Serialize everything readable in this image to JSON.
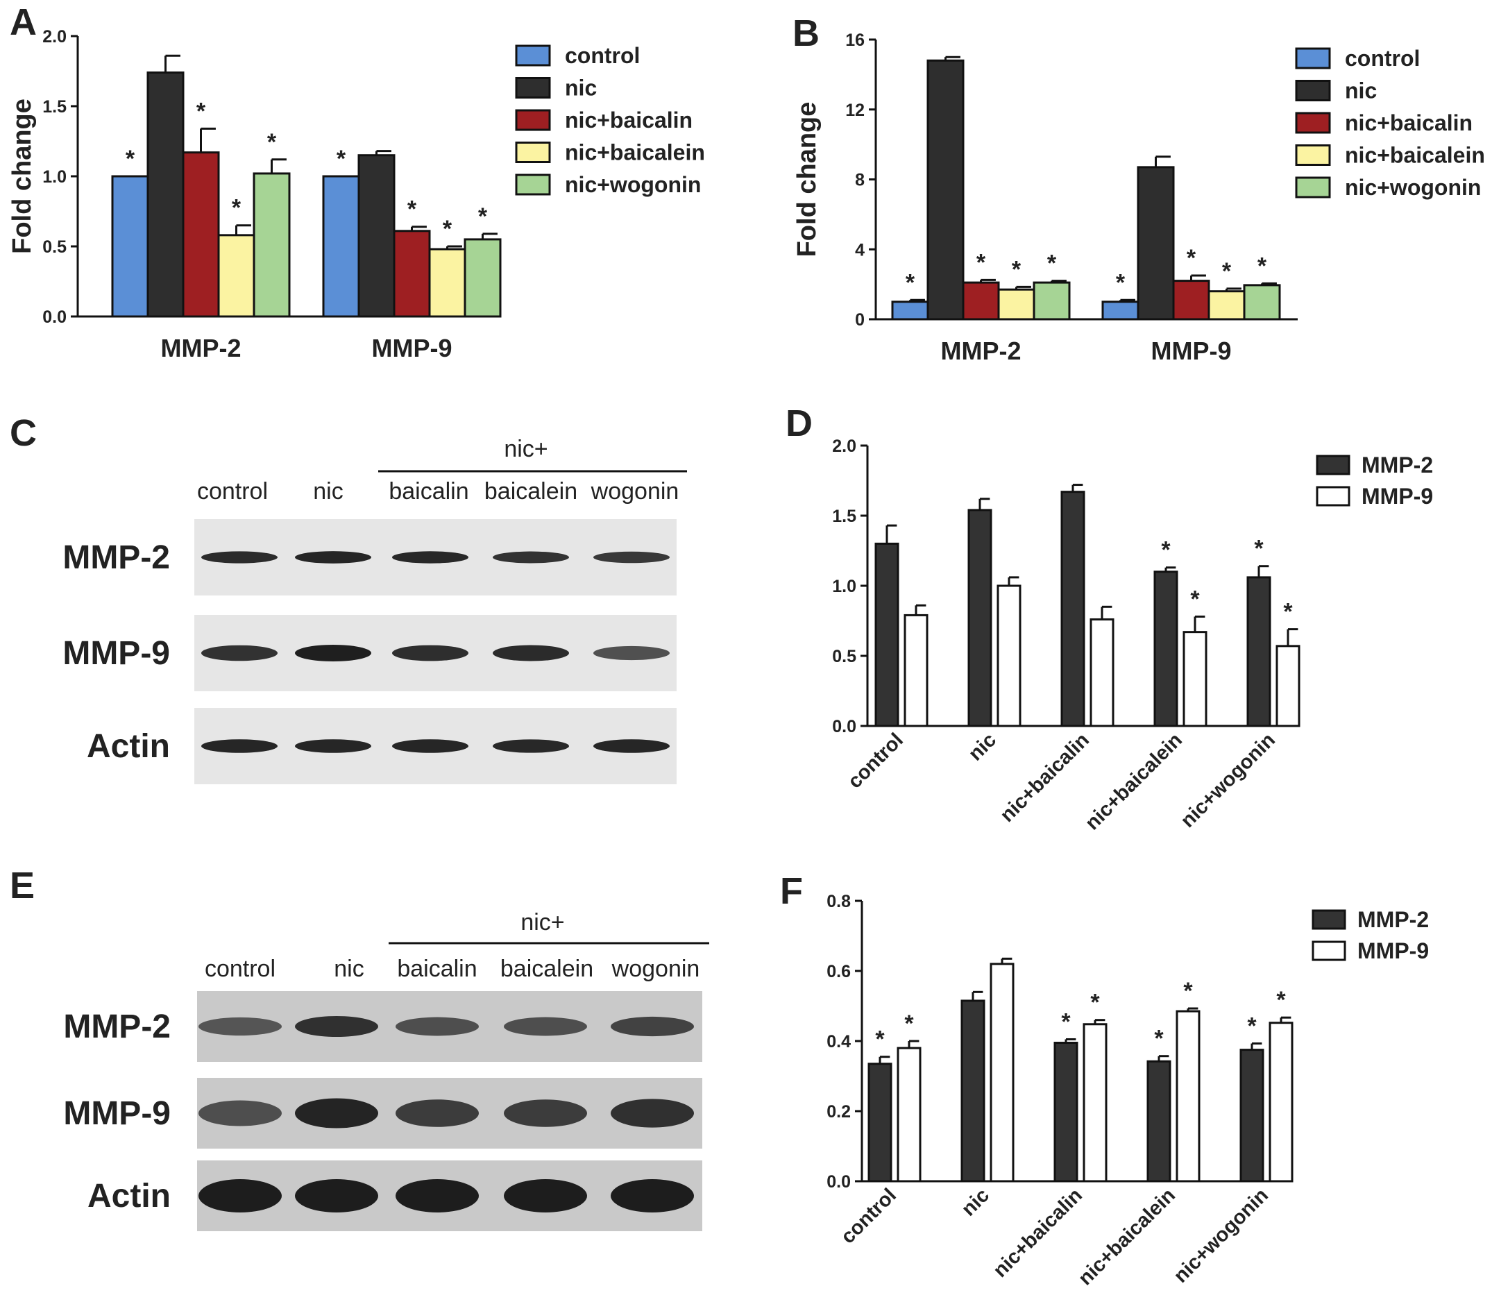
{
  "colors": {
    "control": "#5b8fd6",
    "nic": "#2e2e2e",
    "nic_baicalin": "#9e1f22",
    "nic_baicalein": "#fbf3a2",
    "nic_wogonin": "#a6d495",
    "mmp2_fill": "#333333",
    "mmp9_fill": "#ffffff"
  },
  "chart_data": [
    {
      "panel": "A",
      "type": "bar",
      "ylabel": "Fold change",
      "ylim": [
        0,
        2.0
      ],
      "yticks": [
        "0.0",
        "0.5",
        "1.0",
        "1.5",
        "2.0"
      ],
      "categories": [
        "MMP-2",
        "MMP-9"
      ],
      "legend": "top-right",
      "series": [
        {
          "name": "control",
          "values": [
            1.0,
            1.0
          ],
          "errors": [
            0,
            0
          ],
          "sig": [
            true,
            true
          ]
        },
        {
          "name": "nic",
          "values": [
            1.74,
            1.15
          ],
          "errors": [
            0.12,
            0.03
          ],
          "sig": [
            false,
            false
          ]
        },
        {
          "name": "nic+baicalin",
          "values": [
            1.17,
            0.61
          ],
          "errors": [
            0.17,
            0.03
          ],
          "sig": [
            true,
            true
          ]
        },
        {
          "name": "nic+baicalein",
          "values": [
            0.58,
            0.48
          ],
          "errors": [
            0.07,
            0.02
          ],
          "sig": [
            true,
            true
          ]
        },
        {
          "name": "nic+wogonin",
          "values": [
            1.02,
            0.55
          ],
          "errors": [
            0.1,
            0.04
          ],
          "sig": [
            true,
            true
          ]
        }
      ]
    },
    {
      "panel": "B",
      "type": "bar",
      "ylabel": "Fold change",
      "ylim": [
        0,
        16
      ],
      "yticks": [
        "0",
        "4",
        "8",
        "12",
        "16"
      ],
      "categories": [
        "MMP-2",
        "MMP-9"
      ],
      "legend": "top-right",
      "series": [
        {
          "name": "control",
          "values": [
            1.0,
            1.0
          ],
          "errors": [
            0.1,
            0.1
          ],
          "sig": [
            true,
            true
          ]
        },
        {
          "name": "nic",
          "values": [
            14.8,
            8.7
          ],
          "errors": [
            0.2,
            0.6
          ],
          "sig": [
            false,
            false
          ]
        },
        {
          "name": "nic+baicalin",
          "values": [
            2.1,
            2.2
          ],
          "errors": [
            0.15,
            0.3
          ],
          "sig": [
            true,
            true
          ]
        },
        {
          "name": "nic+baicalein",
          "values": [
            1.7,
            1.6
          ],
          "errors": [
            0.15,
            0.15
          ],
          "sig": [
            true,
            true
          ]
        },
        {
          "name": "nic+wogonin",
          "values": [
            2.1,
            1.95
          ],
          "errors": [
            0.1,
            0.1
          ],
          "sig": [
            true,
            true
          ]
        }
      ]
    },
    {
      "panel": "D",
      "type": "bar",
      "ylim": [
        0,
        2.0
      ],
      "yticks": [
        "0.0",
        "0.5",
        "1.0",
        "1.5",
        "2.0"
      ],
      "categories": [
        "control",
        "nic",
        "nic+baicalin",
        "nic+baicalein",
        "nic+wogonin"
      ],
      "legend": "top-right",
      "series": [
        {
          "name": "MMP-2",
          "values": [
            1.3,
            1.54,
            1.67,
            1.1,
            1.06
          ],
          "errors": [
            0.13,
            0.08,
            0.05,
            0.03,
            0.08
          ],
          "sig": [
            false,
            false,
            false,
            true,
            true
          ]
        },
        {
          "name": "MMP-9",
          "values": [
            0.79,
            1.0,
            0.76,
            0.67,
            0.57
          ],
          "errors": [
            0.07,
            0.06,
            0.09,
            0.11,
            0.12
          ],
          "sig": [
            false,
            false,
            false,
            true,
            true
          ]
        }
      ]
    },
    {
      "panel": "F",
      "type": "bar",
      "ylim": [
        0,
        0.8
      ],
      "yticks": [
        "0.0",
        "0.2",
        "0.4",
        "0.6",
        "0.8"
      ],
      "categories": [
        "control",
        "nic",
        "nic+baicalin",
        "nic+baicalein",
        "nic+wogonin"
      ],
      "legend": "top-right",
      "series": [
        {
          "name": "MMP-2",
          "values": [
            0.335,
            0.515,
            0.395,
            0.342,
            0.375
          ],
          "errors": [
            0.02,
            0.025,
            0.01,
            0.015,
            0.018
          ],
          "sig": [
            true,
            false,
            true,
            true,
            true
          ]
        },
        {
          "name": "MMP-9",
          "values": [
            0.38,
            0.62,
            0.448,
            0.485,
            0.452
          ],
          "errors": [
            0.02,
            0.015,
            0.012,
            0.008,
            0.015
          ],
          "sig": [
            true,
            false,
            true,
            true,
            true
          ]
        }
      ]
    }
  ],
  "blots": [
    {
      "panel": "C",
      "header": "nic+",
      "lanes": [
        "control",
        "nic",
        "baicalin",
        "baicalein",
        "wogonin"
      ],
      "rows": [
        {
          "label": "MMP-2",
          "intensity": [
            0.9,
            0.95,
            0.92,
            0.85,
            0.8
          ]
        },
        {
          "label": "MMP-9",
          "intensity": [
            0.85,
            1.0,
            0.88,
            0.9,
            0.6
          ]
        },
        {
          "label": "Actin",
          "intensity": [
            0.95,
            0.95,
            0.95,
            0.92,
            0.95
          ]
        }
      ]
    },
    {
      "panel": "E",
      "header": "nic+",
      "lanes": [
        "control",
        "nic",
        "baicalin",
        "baicalein",
        "wogonin"
      ],
      "rows": [
        {
          "label": "MMP-2",
          "intensity": [
            0.55,
            0.85,
            0.6,
            0.6,
            0.7
          ]
        },
        {
          "label": "MMP-9",
          "intensity": [
            0.6,
            0.95,
            0.75,
            0.75,
            0.85
          ]
        },
        {
          "label": "Actin",
          "intensity": [
            1.0,
            1.0,
            1.0,
            1.0,
            1.0
          ]
        }
      ]
    }
  ],
  "panel_letters": {
    "a": "A",
    "b": "B",
    "c": "C",
    "d": "D",
    "e": "E",
    "f": "F"
  },
  "sig_symbol": "*"
}
